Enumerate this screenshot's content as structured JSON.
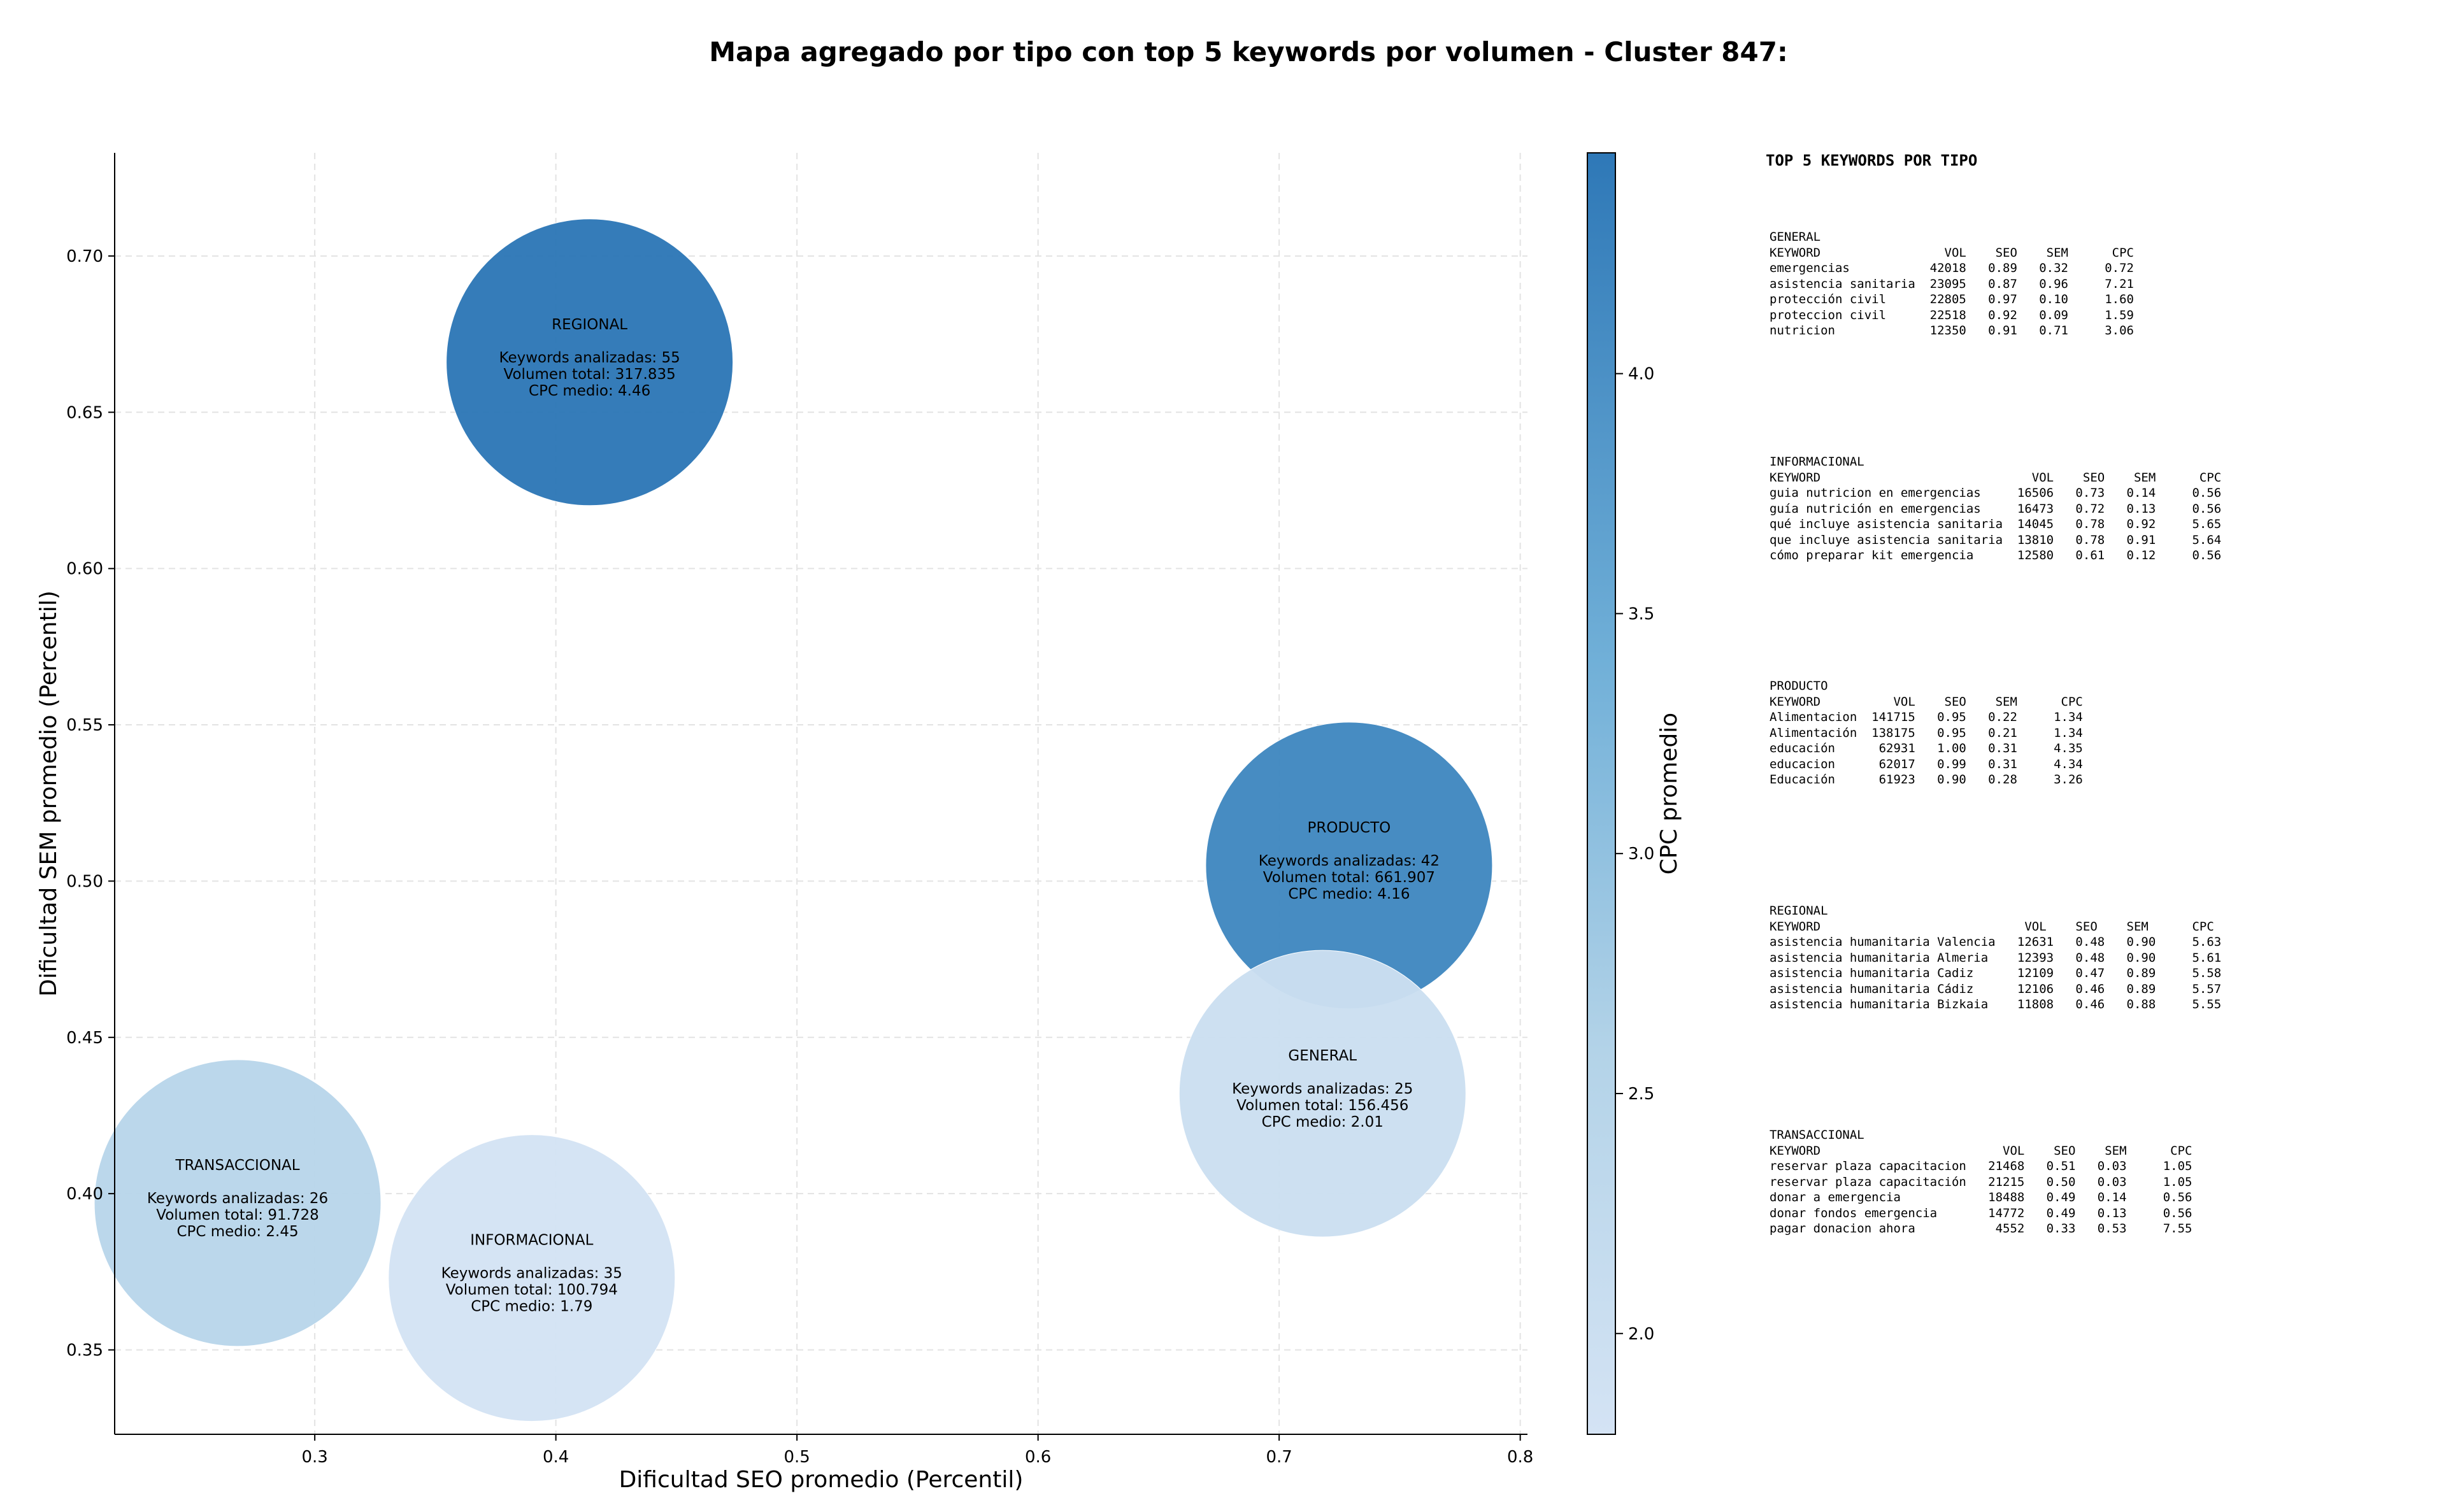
{
  "chart_data": {
    "type": "scatter",
    "title": "Mapa agregado por tipo con top 5 keywords por volumen - Cluster 847:",
    "xlabel": "Dificultad SEO promedio (Percentil)",
    "ylabel": "Dificultad SEM promedio (Percentil)",
    "xlim": [
      0.217,
      0.803
    ],
    "ylim": [
      0.323,
      0.733
    ],
    "xticks": [
      "0.3",
      "0.4",
      "0.5",
      "0.6",
      "0.7",
      "0.8"
    ],
    "yticks": [
      "0.35",
      "0.40",
      "0.45",
      "0.50",
      "0.55",
      "0.60",
      "0.65",
      "0.70"
    ],
    "grid": true,
    "colorbar": {
      "label": "CPC promedio",
      "min": 1.79,
      "max": 4.46,
      "ticks": [
        "2.0",
        "2.5",
        "3.0",
        "3.5",
        "4.0"
      ]
    },
    "points": [
      {
        "name": "REGIONAL",
        "x": 0.414,
        "y": 0.666,
        "keywords_label": "Keywords analizadas: 55",
        "volume_label": "Volumen total: 317.835",
        "cpc_label": "CPC medio: 4.46",
        "cpc": 4.46,
        "volume": 317835
      },
      {
        "name": "PRODUCTO",
        "x": 0.729,
        "y": 0.505,
        "keywords_label": "Keywords analizadas: 42",
        "volume_label": "Volumen total: 661.907",
        "cpc_label": "CPC medio: 4.16",
        "cpc": 4.16,
        "volume": 661907
      },
      {
        "name": "GENERAL",
        "x": 0.718,
        "y": 0.432,
        "keywords_label": "Keywords analizadas: 25",
        "volume_label": "Volumen total: 156.456",
        "cpc_label": "CPC medio: 2.01",
        "cpc": 2.01,
        "volume": 156456
      },
      {
        "name": "TRANSACCIONAL",
        "x": 0.268,
        "y": 0.397,
        "keywords_label": "Keywords analizadas: 26",
        "volume_label": "Volumen total: 91.728",
        "cpc_label": "CPC medio: 2.45",
        "cpc": 2.45,
        "volume": 91728
      },
      {
        "name": "INFORMACIONAL",
        "x": 0.39,
        "y": 0.373,
        "keywords_label": "Keywords analizadas: 35",
        "volume_label": "Volumen total: 100.794",
        "cpc_label": "CPC medio: 1.79",
        "cpc": 1.79,
        "volume": 100794
      }
    ]
  },
  "panel": {
    "title": "TOP 5 KEYWORDS POR TIPO",
    "blocks": [
      {
        "text": "GENERAL\nKEYWORD                 VOL    SEO    SEM      CPC\nemergencias           42018   0.89   0.32     0.72\nasistencia sanitaria  23095   0.87   0.96     7.21\nprotección civil      22805   0.97   0.10     1.60\nproteccion civil      22518   0.92   0.09     1.59\nnutricion             12350   0.91   0.71     3.06"
      },
      {
        "text": "INFORMACIONAL\nKEYWORD                             VOL    SEO    SEM      CPC\nguia nutricion en emergencias     16506   0.73   0.14     0.56\nguía nutrición en emergencias     16473   0.72   0.13     0.56\nqué incluye asistencia sanitaria  14045   0.78   0.92     5.65\nque incluye asistencia sanitaria  13810   0.78   0.91     5.64\ncómo preparar kit emergencia      12580   0.61   0.12     0.56"
      },
      {
        "text": "PRODUCTO\nKEYWORD          VOL    SEO    SEM      CPC\nAlimentacion  141715   0.95   0.22     1.34\nAlimentación  138175   0.95   0.21     1.34\neducación      62931   1.00   0.31     4.35\neducacion      62017   0.99   0.31     4.34\nEducación      61923   0.90   0.28     3.26"
      },
      {
        "text": "REGIONAL\nKEYWORD                            VOL    SEO    SEM      CPC\nasistencia humanitaria Valencia   12631   0.48   0.90     5.63\nasistencia humanitaria Almeria    12393   0.48   0.90     5.61\nasistencia humanitaria Cadiz      12109   0.47   0.89     5.58\nasistencia humanitaria Cádiz      12106   0.46   0.89     5.57\nasistencia humanitaria Bizkaia    11808   0.46   0.88     5.55"
      },
      {
        "text": "TRANSACCIONAL\nKEYWORD                         VOL    SEO    SEM      CPC\nreservar plaza capacitacion   21468   0.51   0.03     1.05\nreservar plaza capacitación   21215   0.50   0.03     1.05\ndonar a emergencia            18488   0.49   0.14     0.56\ndonar fondos emergencia       14772   0.49   0.13     0.56\npagar donacion ahora           4552   0.33   0.53     7.55"
      }
    ]
  }
}
